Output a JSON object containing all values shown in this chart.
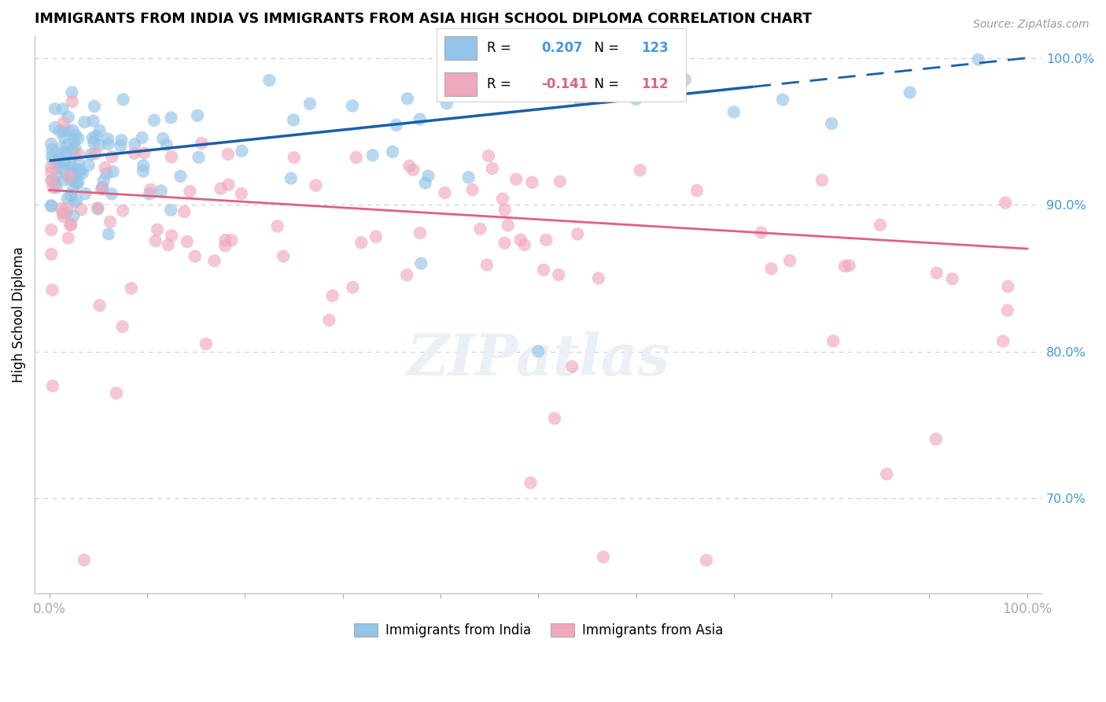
{
  "title": "IMMIGRANTS FROM INDIA VS IMMIGRANTS FROM ASIA HIGH SCHOOL DIPLOMA CORRELATION CHART",
  "source": "Source: ZipAtlas.com",
  "ylabel": "High School Diploma",
  "blue_R": 0.207,
  "blue_N": 123,
  "pink_R": -0.141,
  "pink_N": 112,
  "blue_color": "#94C4E8",
  "pink_color": "#F0A8BC",
  "blue_edge_color": "#94C4E8",
  "pink_edge_color": "#F0A8BC",
  "blue_line_color": "#1A5FA8",
  "pink_line_color": "#E06080",
  "legend_label_blue": "Immigrants from India",
  "legend_label_pink": "Immigrants from Asia",
  "blue_trendline_y_start": 93.0,
  "blue_trendline_y_end": 100.0,
  "blue_dash_split": 72,
  "pink_trendline_y_start": 91.0,
  "pink_trendline_y_end": 87.0,
  "ylim_bottom": 63.5,
  "ylim_top": 101.5,
  "xlim_left": -1.5,
  "xlim_right": 101.5,
  "background_color": "#FFFFFF",
  "grid_color": "#CCCCCC",
  "right_ytick_color": "#4499DD",
  "source_color": "#999999"
}
